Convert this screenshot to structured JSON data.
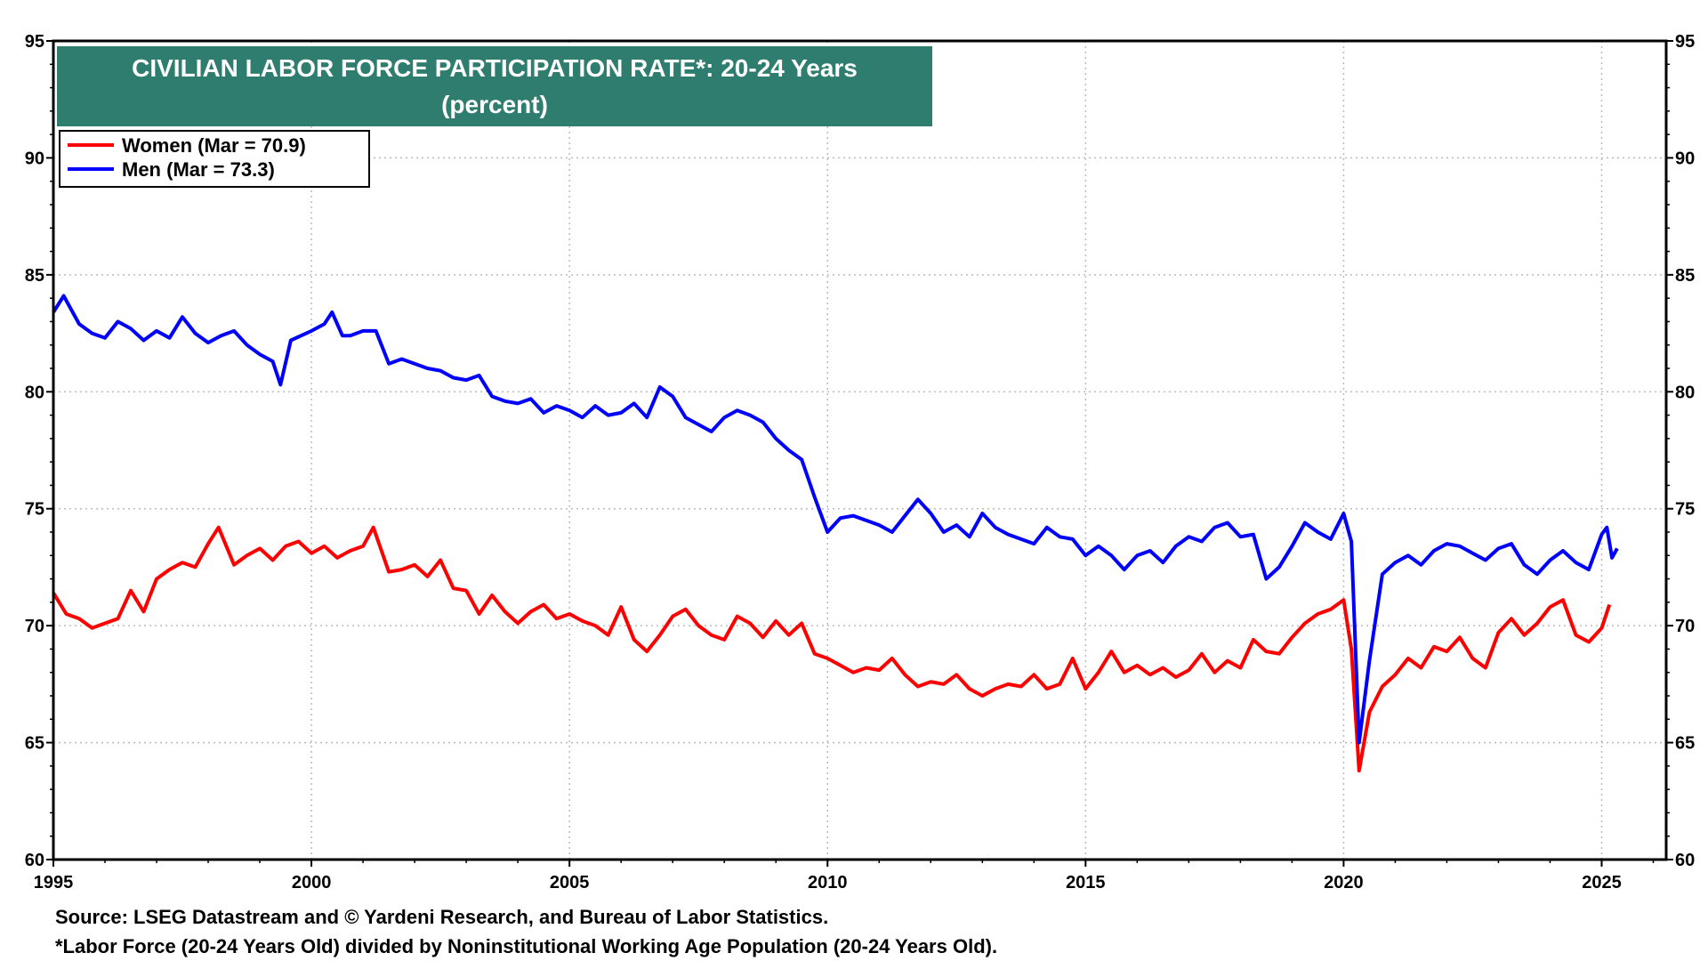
{
  "chart_data": {
    "type": "line",
    "title": "CIVILIAN LABOR FORCE PARTICIPATION RATE*: 20-24 Years",
    "subtitle": "(percent)",
    "xlabel": "",
    "ylabel": "",
    "xlim": [
      1995,
      2026.25
    ],
    "ylim": [
      60,
      95
    ],
    "x_ticks": [
      "1995",
      "2000",
      "2005",
      "2010",
      "2015",
      "2020",
      "2025"
    ],
    "y_ticks": [
      "60",
      "65",
      "70",
      "75",
      "80",
      "85",
      "90",
      "95"
    ],
    "grid": true,
    "legend_position": "top-left",
    "series": [
      {
        "name": "Women (Mar  = 70.9)",
        "color": "#ff0000",
        "points": [
          [
            1995.0,
            71.4
          ],
          [
            1995.25,
            70.5
          ],
          [
            1995.5,
            70.3
          ],
          [
            1995.75,
            69.9
          ],
          [
            1996.0,
            70.1
          ],
          [
            1996.25,
            70.3
          ],
          [
            1996.5,
            71.5
          ],
          [
            1996.75,
            70.6
          ],
          [
            1997.0,
            72.0
          ],
          [
            1997.25,
            72.4
          ],
          [
            1997.5,
            72.7
          ],
          [
            1997.75,
            72.5
          ],
          [
            1998.0,
            73.5
          ],
          [
            1998.2,
            74.2
          ],
          [
            1998.5,
            72.6
          ],
          [
            1998.75,
            73.0
          ],
          [
            1999.0,
            73.3
          ],
          [
            1999.25,
            72.8
          ],
          [
            1999.5,
            73.4
          ],
          [
            1999.75,
            73.6
          ],
          [
            2000.0,
            73.1
          ],
          [
            2000.25,
            73.4
          ],
          [
            2000.5,
            72.9
          ],
          [
            2000.75,
            73.2
          ],
          [
            2001.0,
            73.4
          ],
          [
            2001.2,
            74.2
          ],
          [
            2001.5,
            72.3
          ],
          [
            2001.75,
            72.4
          ],
          [
            2002.0,
            72.6
          ],
          [
            2002.25,
            72.1
          ],
          [
            2002.5,
            72.8
          ],
          [
            2002.75,
            71.6
          ],
          [
            2003.0,
            71.5
          ],
          [
            2003.25,
            70.5
          ],
          [
            2003.5,
            71.3
          ],
          [
            2003.75,
            70.6
          ],
          [
            2004.0,
            70.1
          ],
          [
            2004.25,
            70.6
          ],
          [
            2004.5,
            70.9
          ],
          [
            2004.75,
            70.3
          ],
          [
            2005.0,
            70.5
          ],
          [
            2005.25,
            70.2
          ],
          [
            2005.5,
            70.0
          ],
          [
            2005.75,
            69.6
          ],
          [
            2006.0,
            70.8
          ],
          [
            2006.25,
            69.4
          ],
          [
            2006.5,
            68.9
          ],
          [
            2006.75,
            69.6
          ],
          [
            2007.0,
            70.4
          ],
          [
            2007.25,
            70.7
          ],
          [
            2007.5,
            70.0
          ],
          [
            2007.75,
            69.6
          ],
          [
            2008.0,
            69.4
          ],
          [
            2008.25,
            70.4
          ],
          [
            2008.5,
            70.1
          ],
          [
            2008.75,
            69.5
          ],
          [
            2009.0,
            70.2
          ],
          [
            2009.25,
            69.6
          ],
          [
            2009.5,
            70.1
          ],
          [
            2009.75,
            68.8
          ],
          [
            2010.0,
            68.6
          ],
          [
            2010.25,
            68.3
          ],
          [
            2010.5,
            68.0
          ],
          [
            2010.75,
            68.2
          ],
          [
            2011.0,
            68.1
          ],
          [
            2011.25,
            68.6
          ],
          [
            2011.5,
            67.9
          ],
          [
            2011.75,
            67.4
          ],
          [
            2012.0,
            67.6
          ],
          [
            2012.25,
            67.5
          ],
          [
            2012.5,
            67.9
          ],
          [
            2012.75,
            67.3
          ],
          [
            2013.0,
            67.0
          ],
          [
            2013.25,
            67.3
          ],
          [
            2013.5,
            67.5
          ],
          [
            2013.75,
            67.4
          ],
          [
            2014.0,
            67.9
          ],
          [
            2014.25,
            67.3
          ],
          [
            2014.5,
            67.5
          ],
          [
            2014.75,
            68.6
          ],
          [
            2015.0,
            67.3
          ],
          [
            2015.25,
            68.0
          ],
          [
            2015.5,
            68.9
          ],
          [
            2015.75,
            68.0
          ],
          [
            2016.0,
            68.3
          ],
          [
            2016.25,
            67.9
          ],
          [
            2016.5,
            68.2
          ],
          [
            2016.75,
            67.8
          ],
          [
            2017.0,
            68.1
          ],
          [
            2017.25,
            68.8
          ],
          [
            2017.5,
            68.0
          ],
          [
            2017.75,
            68.5
          ],
          [
            2018.0,
            68.2
          ],
          [
            2018.25,
            69.4
          ],
          [
            2018.5,
            68.9
          ],
          [
            2018.75,
            68.8
          ],
          [
            2019.0,
            69.5
          ],
          [
            2019.25,
            70.1
          ],
          [
            2019.5,
            70.5
          ],
          [
            2019.75,
            70.7
          ],
          [
            2020.0,
            71.1
          ],
          [
            2020.15,
            69.0
          ],
          [
            2020.3,
            63.8
          ],
          [
            2020.5,
            66.3
          ],
          [
            2020.75,
            67.4
          ],
          [
            2021.0,
            67.9
          ],
          [
            2021.25,
            68.6
          ],
          [
            2021.5,
            68.2
          ],
          [
            2021.75,
            69.1
          ],
          [
            2022.0,
            68.9
          ],
          [
            2022.25,
            69.5
          ],
          [
            2022.5,
            68.6
          ],
          [
            2022.75,
            68.2
          ],
          [
            2023.0,
            69.7
          ],
          [
            2023.25,
            70.3
          ],
          [
            2023.5,
            69.6
          ],
          [
            2023.75,
            70.1
          ],
          [
            2024.0,
            70.8
          ],
          [
            2024.25,
            71.1
          ],
          [
            2024.5,
            69.6
          ],
          [
            2024.75,
            69.3
          ],
          [
            2025.0,
            69.9
          ],
          [
            2025.15,
            70.9
          ]
        ]
      },
      {
        "name": "Men (Mar  = 73.3)",
        "color": "#0000ff",
        "points": [
          [
            1995.0,
            83.4
          ],
          [
            1995.2,
            84.1
          ],
          [
            1995.5,
            82.9
          ],
          [
            1995.75,
            82.5
          ],
          [
            1996.0,
            82.3
          ],
          [
            1996.25,
            83.0
          ],
          [
            1996.5,
            82.7
          ],
          [
            1996.75,
            82.2
          ],
          [
            1997.0,
            82.6
          ],
          [
            1997.25,
            82.3
          ],
          [
            1997.5,
            83.2
          ],
          [
            1997.75,
            82.5
          ],
          [
            1998.0,
            82.1
          ],
          [
            1998.25,
            82.4
          ],
          [
            1998.5,
            82.6
          ],
          [
            1998.75,
            82.0
          ],
          [
            1999.0,
            81.6
          ],
          [
            1999.25,
            81.3
          ],
          [
            1999.4,
            80.3
          ],
          [
            1999.6,
            82.2
          ],
          [
            2000.0,
            82.6
          ],
          [
            2000.25,
            82.9
          ],
          [
            2000.4,
            83.4
          ],
          [
            2000.6,
            82.4
          ],
          [
            2000.75,
            82.4
          ],
          [
            2001.0,
            82.6
          ],
          [
            2001.25,
            82.6
          ],
          [
            2001.5,
            81.2
          ],
          [
            2001.75,
            81.4
          ],
          [
            2002.0,
            81.2
          ],
          [
            2002.25,
            81.0
          ],
          [
            2002.5,
            80.9
          ],
          [
            2002.75,
            80.6
          ],
          [
            2003.0,
            80.5
          ],
          [
            2003.25,
            80.7
          ],
          [
            2003.5,
            79.8
          ],
          [
            2003.75,
            79.6
          ],
          [
            2004.0,
            79.5
          ],
          [
            2004.25,
            79.7
          ],
          [
            2004.5,
            79.1
          ],
          [
            2004.75,
            79.4
          ],
          [
            2005.0,
            79.2
          ],
          [
            2005.25,
            78.9
          ],
          [
            2005.5,
            79.4
          ],
          [
            2005.75,
            79.0
          ],
          [
            2006.0,
            79.1
          ],
          [
            2006.25,
            79.5
          ],
          [
            2006.5,
            78.9
          ],
          [
            2006.75,
            80.2
          ],
          [
            2007.0,
            79.8
          ],
          [
            2007.25,
            78.9
          ],
          [
            2007.5,
            78.6
          ],
          [
            2007.75,
            78.3
          ],
          [
            2008.0,
            78.9
          ],
          [
            2008.25,
            79.2
          ],
          [
            2008.5,
            79.0
          ],
          [
            2008.75,
            78.7
          ],
          [
            2009.0,
            78.0
          ],
          [
            2009.25,
            77.5
          ],
          [
            2009.5,
            77.1
          ],
          [
            2009.75,
            75.5
          ],
          [
            2010.0,
            74.0
          ],
          [
            2010.25,
            74.6
          ],
          [
            2010.5,
            74.7
          ],
          [
            2010.75,
            74.5
          ],
          [
            2011.0,
            74.3
          ],
          [
            2011.25,
            74.0
          ],
          [
            2011.5,
            74.7
          ],
          [
            2011.75,
            75.4
          ],
          [
            2012.0,
            74.8
          ],
          [
            2012.25,
            74.0
          ],
          [
            2012.5,
            74.3
          ],
          [
            2012.75,
            73.8
          ],
          [
            2013.0,
            74.8
          ],
          [
            2013.25,
            74.2
          ],
          [
            2013.5,
            73.9
          ],
          [
            2013.75,
            73.7
          ],
          [
            2014.0,
            73.5
          ],
          [
            2014.25,
            74.2
          ],
          [
            2014.5,
            73.8
          ],
          [
            2014.75,
            73.7
          ],
          [
            2015.0,
            73.0
          ],
          [
            2015.25,
            73.4
          ],
          [
            2015.5,
            73.0
          ],
          [
            2015.75,
            72.4
          ],
          [
            2016.0,
            73.0
          ],
          [
            2016.25,
            73.2
          ],
          [
            2016.5,
            72.7
          ],
          [
            2016.75,
            73.4
          ],
          [
            2017.0,
            73.8
          ],
          [
            2017.25,
            73.6
          ],
          [
            2017.5,
            74.2
          ],
          [
            2017.75,
            74.4
          ],
          [
            2018.0,
            73.8
          ],
          [
            2018.25,
            73.9
          ],
          [
            2018.5,
            72.0
          ],
          [
            2018.75,
            72.5
          ],
          [
            2019.0,
            73.4
          ],
          [
            2019.25,
            74.4
          ],
          [
            2019.5,
            74.0
          ],
          [
            2019.75,
            73.7
          ],
          [
            2020.0,
            74.8
          ],
          [
            2020.15,
            73.6
          ],
          [
            2020.3,
            65.0
          ],
          [
            2020.5,
            68.5
          ],
          [
            2020.75,
            72.2
          ],
          [
            2021.0,
            72.7
          ],
          [
            2021.25,
            73.0
          ],
          [
            2021.5,
            72.6
          ],
          [
            2021.75,
            73.2
          ],
          [
            2022.0,
            73.5
          ],
          [
            2022.25,
            73.4
          ],
          [
            2022.5,
            73.1
          ],
          [
            2022.75,
            72.8
          ],
          [
            2023.0,
            73.3
          ],
          [
            2023.25,
            73.5
          ],
          [
            2023.5,
            72.6
          ],
          [
            2023.75,
            72.2
          ],
          [
            2024.0,
            72.8
          ],
          [
            2024.25,
            73.2
          ],
          [
            2024.5,
            72.7
          ],
          [
            2024.75,
            72.4
          ],
          [
            2025.0,
            73.9
          ],
          [
            2025.1,
            74.2
          ],
          [
            2025.2,
            72.9
          ],
          [
            2025.3,
            73.3
          ]
        ]
      }
    ],
    "footnotes": [
      "Source: LSEG Datastream and © Yardeni Research, and Bureau of Labor Statistics.",
      "*Labor Force (20-24 Years Old) divided by Noninstitutional Working Age Population (20-24 Years Old)."
    ]
  },
  "colors": {
    "title_bg": "#2e7d6e",
    "women": "#ff0000",
    "men": "#0000ff",
    "grid": "#bbbbbb"
  }
}
